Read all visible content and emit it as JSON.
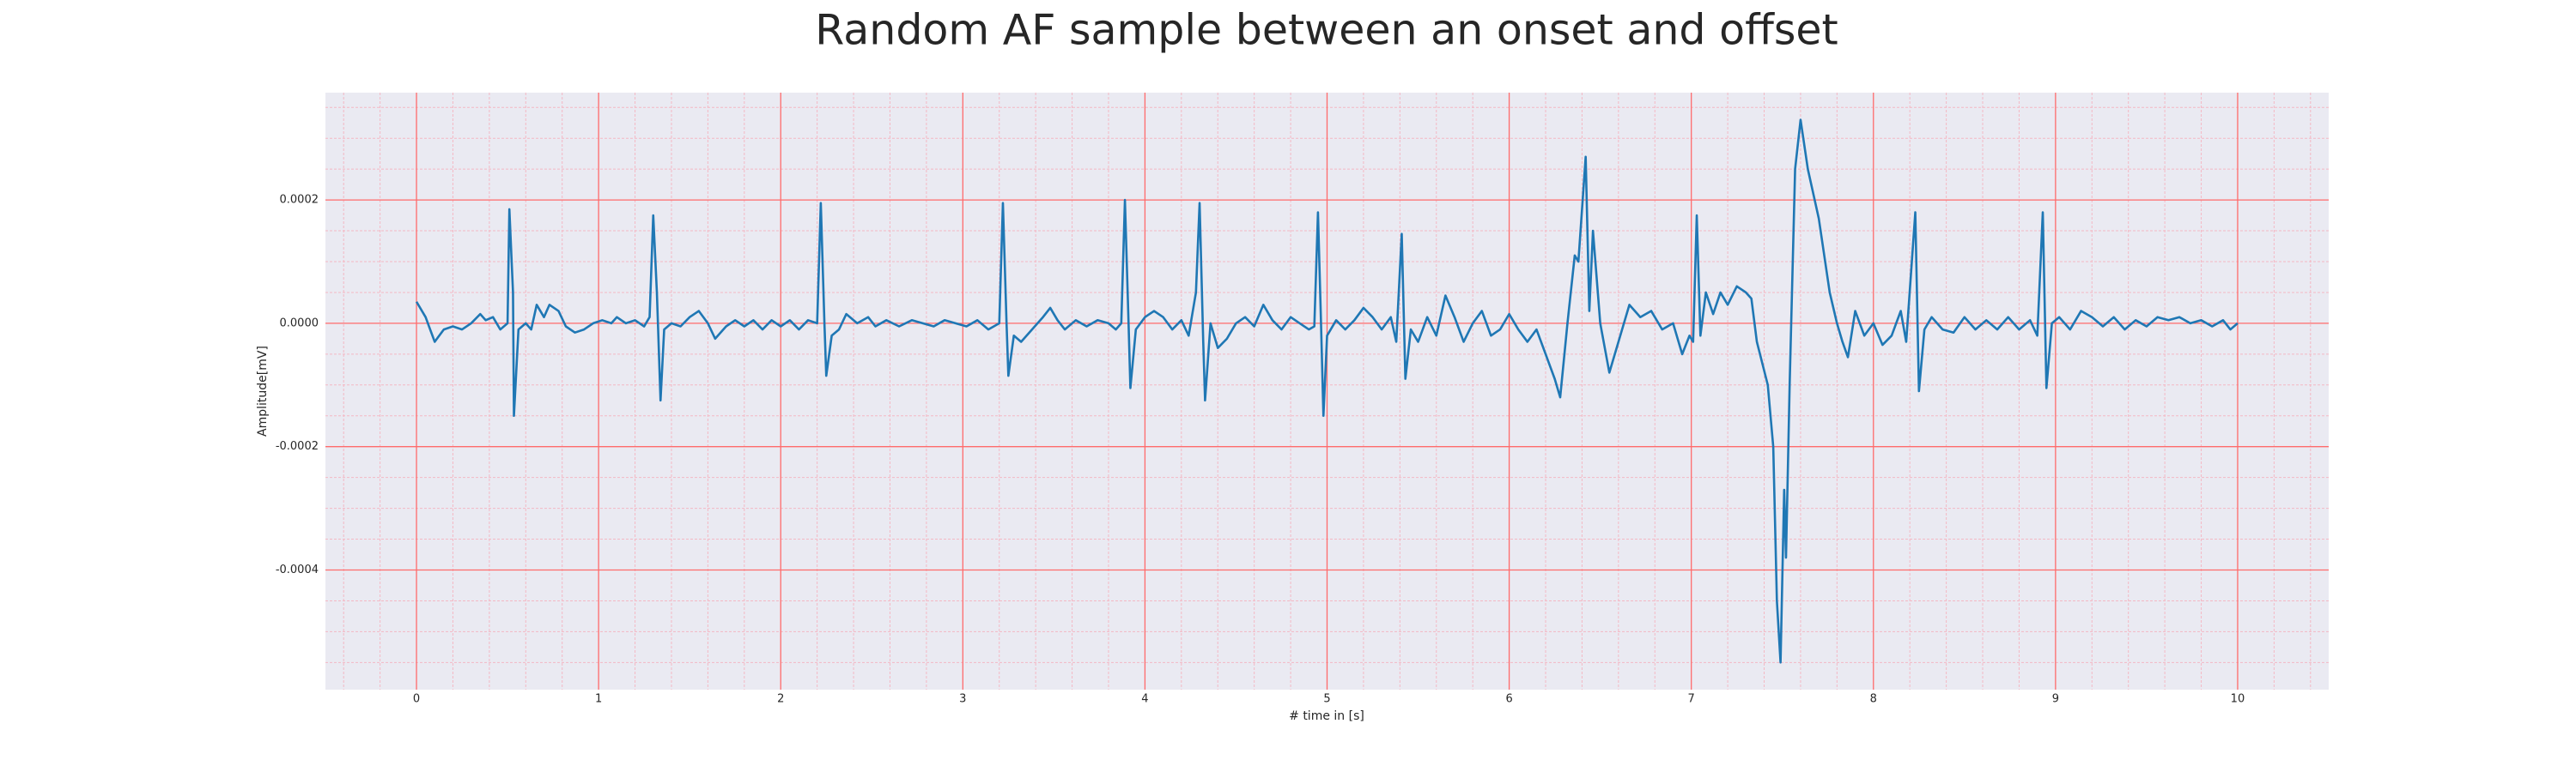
{
  "chart_data": {
    "type": "line",
    "title": "Random AF sample between an onset and offset",
    "xlabel": "# time in [s]",
    "ylabel": "Amplitude[mV]",
    "color": "#1f77b4",
    "background": "#eaeaf2",
    "grid": true,
    "grid_color": "#ff6b6b",
    "minor_grid": true,
    "minor_grid_color": "#f4b8c4",
    "xlim": [
      -0.5,
      10.5
    ],
    "ylim": [
      -0.000594,
      0.000374
    ],
    "xticks": [
      0,
      1,
      2,
      3,
      4,
      5,
      6,
      7,
      8,
      9,
      10
    ],
    "yticks": [
      {
        "value": -0.0004,
        "label": "-0.0004"
      },
      {
        "value": -0.0002,
        "label": "-0.0002"
      },
      {
        "value": 0,
        "label": "0.0000"
      },
      {
        "value": 0.0002,
        "label": "0.0002"
      }
    ],
    "xminorticks": [
      -0.4,
      -0.2,
      0.2,
      0.4,
      0.6,
      0.8,
      1.2,
      1.4,
      1.6,
      1.8,
      2.2,
      2.4,
      2.6,
      2.8,
      3.2,
      3.4,
      3.6,
      3.8,
      4.2,
      4.4,
      4.6,
      4.8,
      5.2,
      5.4,
      5.6,
      5.8,
      6.2,
      6.4,
      6.6,
      6.8,
      7.2,
      7.4,
      7.6,
      7.8,
      8.2,
      8.4,
      8.6,
      8.8,
      9.2,
      9.4,
      9.6,
      9.8,
      10.2,
      10.4
    ],
    "yminorticks": [
      -0.00055,
      -0.0005,
      -0.00045,
      -0.00035,
      -0.0003,
      -0.00025,
      -0.00015,
      -0.0001,
      -5e-05,
      5e-05,
      0.0001,
      0.00015,
      0.00025,
      0.0003,
      0.00035
    ],
    "x": [
      0,
      0.05,
      0.1,
      0.15,
      0.2,
      0.25,
      0.3,
      0.35,
      0.38,
      0.42,
      0.46,
      0.5,
      0.51,
      0.53,
      0.535,
      0.56,
      0.6,
      0.63,
      0.66,
      0.7,
      0.73,
      0.78,
      0.82,
      0.87,
      0.92,
      0.97,
      1.02,
      1.07,
      1.1,
      1.15,
      1.2,
      1.25,
      1.28,
      1.3,
      1.32,
      1.34,
      1.36,
      1.4,
      1.45,
      1.5,
      1.55,
      1.6,
      1.64,
      1.7,
      1.75,
      1.8,
      1.85,
      1.9,
      1.95,
      2.0,
      2.05,
      2.1,
      2.15,
      2.2,
      2.22,
      2.24,
      2.25,
      2.28,
      2.32,
      2.36,
      2.42,
      2.48,
      2.52,
      2.58,
      2.65,
      2.72,
      2.78,
      2.84,
      2.9,
      2.96,
      3.02,
      3.08,
      3.14,
      3.2,
      3.22,
      3.24,
      3.25,
      3.28,
      3.32,
      3.38,
      3.44,
      3.48,
      3.52,
      3.56,
      3.62,
      3.68,
      3.74,
      3.8,
      3.84,
      3.87,
      3.89,
      3.91,
      3.92,
      3.95,
      4.0,
      4.05,
      4.1,
      4.15,
      4.2,
      4.24,
      4.28,
      4.3,
      4.32,
      4.33,
      4.36,
      4.4,
      4.45,
      4.5,
      4.55,
      4.6,
      4.65,
      4.7,
      4.75,
      4.8,
      4.85,
      4.9,
      4.93,
      4.95,
      4.965,
      4.98,
      5.0,
      5.05,
      5.1,
      5.15,
      5.2,
      5.25,
      5.3,
      5.35,
      5.38,
      5.41,
      5.43,
      5.46,
      5.5,
      5.55,
      5.6,
      5.65,
      5.7,
      5.75,
      5.8,
      5.85,
      5.9,
      5.95,
      6.0,
      6.05,
      6.1,
      6.15,
      6.2,
      6.25,
      6.28,
      6.32,
      6.36,
      6.38,
      6.42,
      6.44,
      6.46,
      6.5,
      6.55,
      6.6,
      6.66,
      6.72,
      6.78,
      6.84,
      6.9,
      6.95,
      6.99,
      7.01,
      7.03,
      7.05,
      7.08,
      7.12,
      7.16,
      7.2,
      7.25,
      7.3,
      7.33,
      7.36,
      7.42,
      7.45,
      7.47,
      7.49,
      7.51,
      7.52,
      7.54,
      7.57,
      7.6,
      7.64,
      7.7,
      7.76,
      7.8,
      7.83,
      7.86,
      7.9,
      7.95,
      8.0,
      8.05,
      8.1,
      8.15,
      8.18,
      8.23,
      8.25,
      8.28,
      8.32,
      8.38,
      8.44,
      8.5,
      8.56,
      8.62,
      8.68,
      8.74,
      8.8,
      8.86,
      8.9,
      8.93,
      8.95,
      8.98,
      9.02,
      9.08,
      9.14,
      9.2,
      9.26,
      9.32,
      9.38,
      9.44,
      9.5,
      9.56,
      9.62,
      9.68,
      9.74,
      9.8,
      9.86,
      9.92,
      9.96,
      10.0
    ],
    "values": [
      3.5e-05,
      1e-05,
      -3e-05,
      -1e-05,
      -5e-06,
      -1e-05,
      0,
      1.5e-05,
      5e-06,
      1e-05,
      -1e-05,
      0,
      0.000185,
      5e-05,
      -0.00015,
      -1e-05,
      0,
      -1e-05,
      3e-05,
      1e-05,
      3e-05,
      2e-05,
      -5e-06,
      -1.5e-05,
      -1e-05,
      0,
      5e-06,
      0,
      1e-05,
      0,
      5e-06,
      -5e-06,
      1e-05,
      0.000175,
      5e-05,
      -0.000125,
      -1e-05,
      0,
      -5e-06,
      1e-05,
      2e-05,
      0,
      -2.5e-05,
      -5e-06,
      5e-06,
      -5e-06,
      5e-06,
      -1e-05,
      5e-06,
      -5e-06,
      5e-06,
      -1e-05,
      5e-06,
      0,
      0.000195,
      0,
      -8.5e-05,
      -2e-05,
      -1e-05,
      1.5e-05,
      0,
      1e-05,
      -5e-06,
      5e-06,
      -5e-06,
      5e-06,
      0,
      -5e-06,
      5e-06,
      0,
      -5e-06,
      5e-06,
      -1e-05,
      0,
      0.000195,
      0,
      -8.5e-05,
      -2e-05,
      -3e-05,
      -1e-05,
      1e-05,
      2.5e-05,
      5e-06,
      -1e-05,
      5e-06,
      -5e-06,
      5e-06,
      0,
      -1e-05,
      0,
      0.0002,
      0,
      -0.000105,
      -1e-05,
      1e-05,
      2e-05,
      1e-05,
      -1e-05,
      5e-06,
      -2e-05,
      5e-05,
      0.000195,
      -3e-05,
      -0.000125,
      0,
      -4e-05,
      -2.5e-05,
      0,
      1e-05,
      -5e-06,
      3e-05,
      5e-06,
      -1e-05,
      1e-05,
      0,
      -1e-05,
      -5e-06,
      0.00018,
      2e-05,
      -0.00015,
      -2e-05,
      5e-06,
      -1e-05,
      5e-06,
      2.5e-05,
      1e-05,
      -1e-05,
      1e-05,
      -3e-05,
      0.000145,
      -9e-05,
      -1e-05,
      -3e-05,
      1e-05,
      -2e-05,
      4.5e-05,
      1e-05,
      -3e-05,
      0,
      2e-05,
      -2e-05,
      -1e-05,
      1.5e-05,
      -1e-05,
      -3e-05,
      -1e-05,
      -5e-05,
      -9e-05,
      -0.00012,
      0,
      0.00011,
      0.0001,
      0.00027,
      2e-05,
      0.00015,
      0,
      -8e-05,
      -3e-05,
      3e-05,
      1e-05,
      2e-05,
      -1e-05,
      0,
      -5e-05,
      -2e-05,
      -3e-05,
      0.000175,
      -2e-05,
      5e-05,
      1.5e-05,
      5e-05,
      3e-05,
      6e-05,
      5e-05,
      4e-05,
      -3e-05,
      -0.0001,
      -0.0002,
      -0.00045,
      -0.00055,
      -0.00027,
      -0.00038,
      -0.0001,
      0.00025,
      0.00033,
      0.00025,
      0.00017,
      5e-05,
      0,
      -3e-05,
      -5.5e-05,
      2e-05,
      -2e-05,
      0,
      -3.5e-05,
      -2e-05,
      2e-05,
      -3e-05,
      0.00018,
      -0.00011,
      -1e-05,
      1e-05,
      -1e-05,
      -1.5e-05,
      1e-05,
      -1e-05,
      5e-06,
      -1e-05,
      1e-05,
      -1e-05,
      5e-06,
      -2e-05,
      0.00018,
      -0.000105,
      0,
      1e-05,
      -1e-05,
      2e-05,
      1e-05,
      -5e-06,
      1e-05,
      -1e-05,
      5e-06,
      -5e-06,
      1e-05,
      5e-06,
      1e-05,
      0,
      5e-06,
      -5e-06,
      5e-06,
      -1e-05,
      0
    ]
  }
}
